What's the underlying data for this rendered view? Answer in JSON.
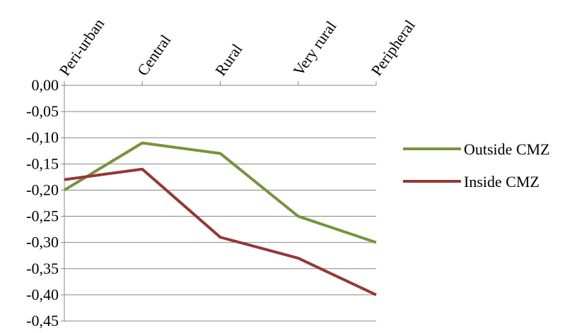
{
  "chart_data": {
    "type": "line",
    "title": "",
    "xlabel": "",
    "ylabel": "",
    "categories": [
      "Peri-urban",
      "Central",
      "Rural",
      "Very rural",
      "Peripheral"
    ],
    "ylim": [
      -0.45,
      0.0
    ],
    "y_ticks": [
      0.0,
      -0.05,
      -0.1,
      -0.15,
      -0.2,
      -0.25,
      -0.3,
      -0.35,
      -0.4,
      -0.45
    ],
    "y_tick_labels": [
      "0,00",
      "-0,05",
      "-0,10",
      "-0,15",
      "-0,20",
      "-0,25",
      "-0,30",
      "-0,35",
      "-0,40",
      "-0,45"
    ],
    "x_axis_position": "top",
    "grid": "horizontal",
    "legend": "right",
    "series": [
      {
        "name": "Outside CMZ",
        "color": "#77933c",
        "values": [
          -0.2,
          -0.11,
          -0.13,
          -0.25,
          -0.3
        ]
      },
      {
        "name": "Inside CMZ",
        "color": "#953735",
        "values": [
          -0.18,
          -0.16,
          -0.29,
          -0.33,
          -0.4
        ]
      }
    ]
  }
}
